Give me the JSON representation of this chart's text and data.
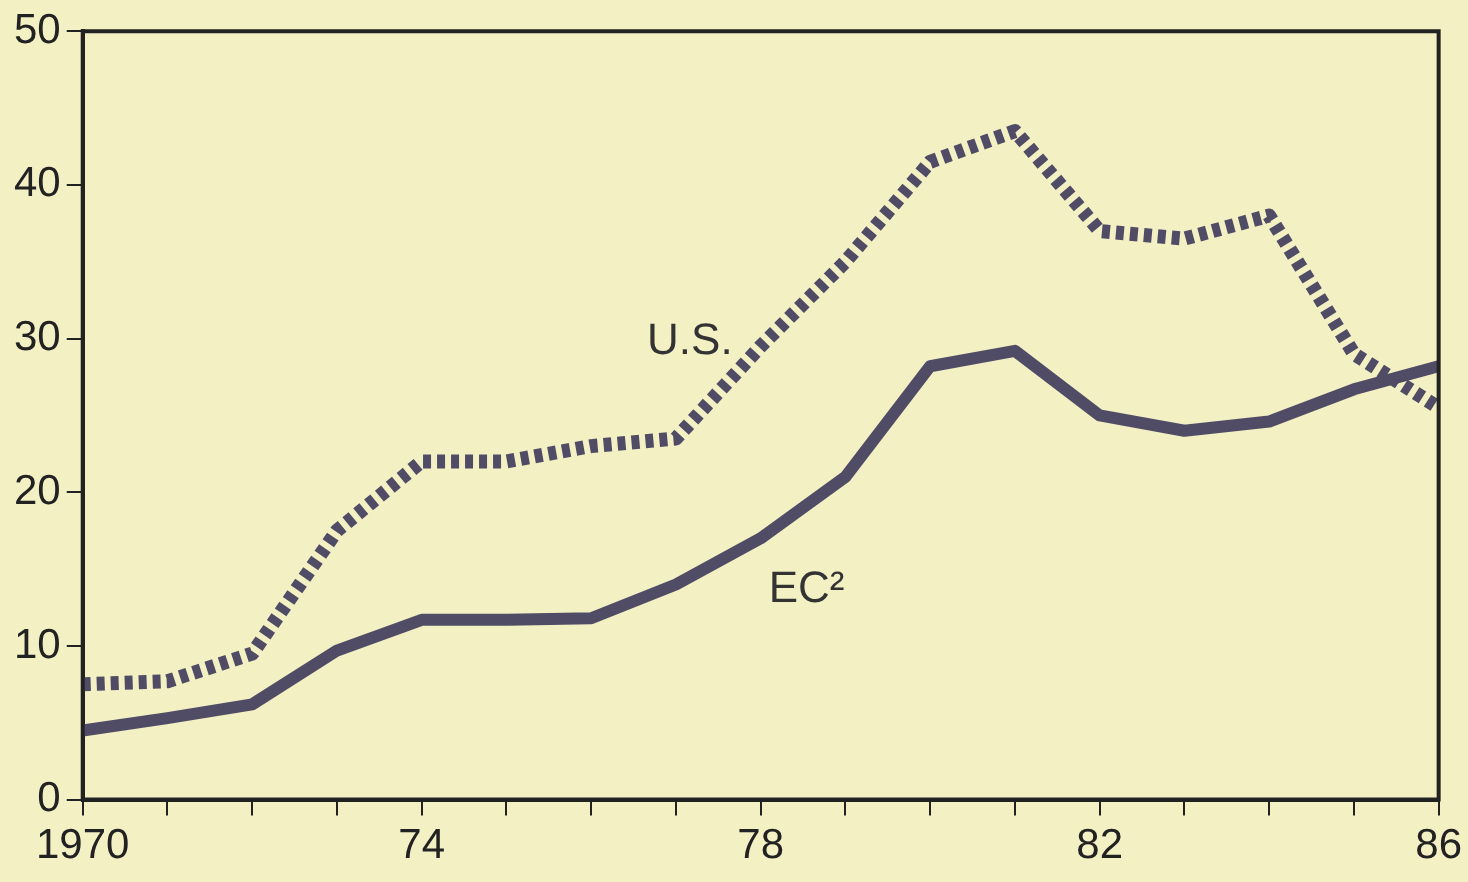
{
  "chart_data": {
    "type": "line",
    "x": [
      1970,
      1971,
      1972,
      1973,
      1974,
      1975,
      1976,
      1977,
      1978,
      1979,
      1980,
      1981,
      1982,
      1983,
      1984,
      1985,
      1986
    ],
    "series": [
      {
        "name": "U.S.",
        "color": "#514c66",
        "line_style": "dotted",
        "values": [
          7.5,
          7.7,
          9.5,
          17.5,
          22,
          22,
          23,
          23.5,
          29.5,
          35,
          41.5,
          43.5,
          37,
          36.5,
          38,
          29,
          25.5
        ]
      },
      {
        "name": "EC²",
        "color": "#514c66",
        "line_style": "solid",
        "values": [
          4.5,
          5.3,
          6.2,
          9.7,
          11.7,
          11.7,
          11.8,
          14,
          17,
          21,
          28.2,
          29.2,
          25,
          24,
          24.6,
          26.7,
          28.2
        ]
      }
    ],
    "xlim": [
      1970,
      1986
    ],
    "xticks": [
      1970,
      {
        "value": 1971,
        "label": null
      },
      {
        "value": 1972,
        "label": null
      },
      {
        "value": 1973,
        "label": null
      },
      {
        "value": 1974,
        "label": "74"
      },
      {
        "value": 1975,
        "label": null
      },
      {
        "value": 1976,
        "label": null
      },
      {
        "value": 1977,
        "label": null
      },
      {
        "value": 1978,
        "label": "78"
      },
      {
        "value": 1979,
        "label": null
      },
      {
        "value": 1980,
        "label": null
      },
      {
        "value": 1981,
        "label": null
      },
      {
        "value": 1982,
        "label": "82"
      },
      {
        "value": 1983,
        "label": null
      },
      {
        "value": 1984,
        "label": null
      },
      {
        "value": 1985,
        "label": null
      },
      {
        "value": 1986,
        "label": "86"
      }
    ],
    "ylim": [
      0,
      50
    ],
    "yticks": [
      0,
      10,
      20,
      30,
      40,
      50
    ],
    "grid": false,
    "legend": false,
    "marker": "none"
  }
}
